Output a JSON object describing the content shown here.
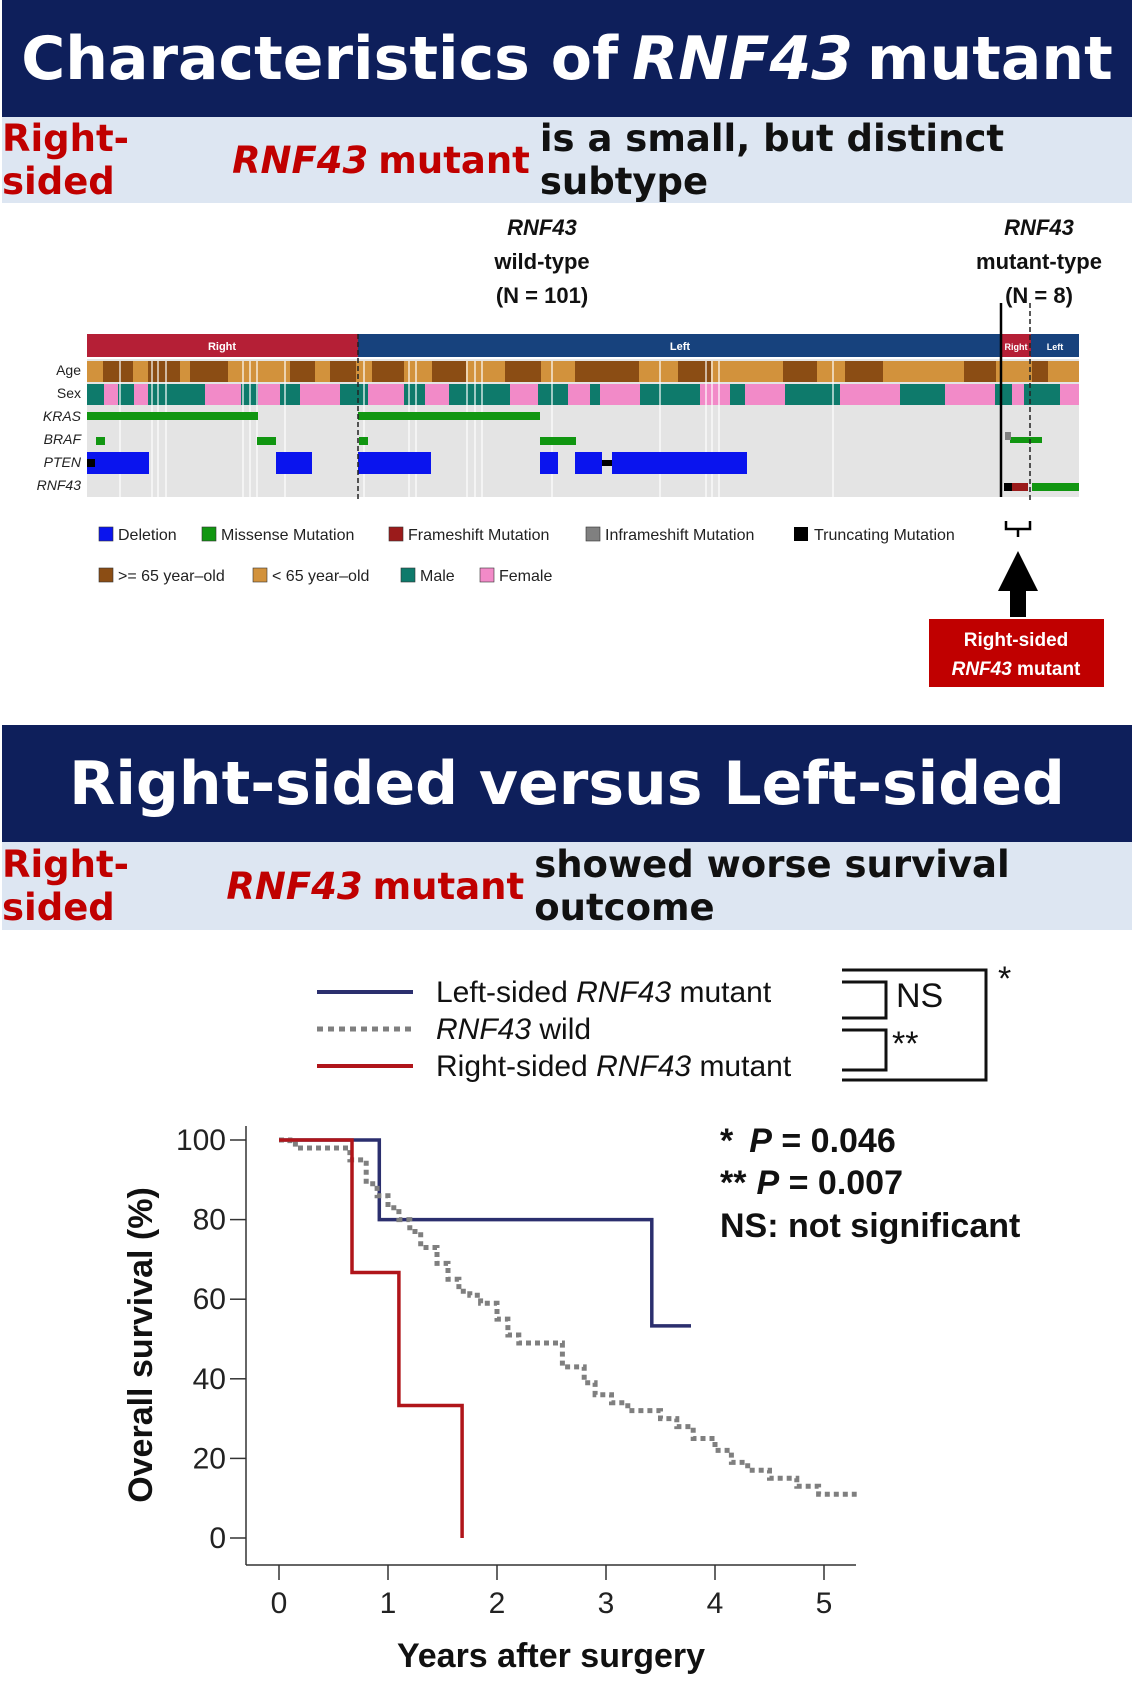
{
  "header1": {
    "title_pre": "Characteristics of ",
    "title_gene": "RNF43",
    "title_post": " mutant"
  },
  "subtitle1": {
    "red_pre": "Right-sided ",
    "red_gene": "RNF43",
    "red_post": " mutant",
    "black": " is a small, but distinct subtype"
  },
  "oncoprint": {
    "wild_gene": "RNF43",
    "wild_label": "wild-type",
    "wild_n": "(N = 101)",
    "mut_gene": "RNF43",
    "mut_label": "mutant-type",
    "mut_n": "(N = 8)",
    "side_right": "Right",
    "side_left": "Left",
    "side_right_small": "Right",
    "side_left_small": "Left",
    "rows": [
      "Age",
      "Sex",
      "KRAS",
      "BRAF",
      "PTEN",
      "RNF43"
    ],
    "legend_row1": [
      "Deletion",
      "Missense Mutation",
      "Frameshift Mutation",
      "Inframeshift Mutation",
      "Truncating Mutation"
    ],
    "legend_row2": [
      ">= 65 year–old",
      "< 65 year–old",
      "Male",
      "Female"
    ],
    "colors": {
      "deletion": "#0a14ee",
      "missense": "#119611",
      "frameshift": "#9b1b1b",
      "inframeshift": "#808080",
      "truncating": "#000000",
      "age_old": "#8b4d14",
      "age_young": "#d2923c",
      "male": "#0e7a6b",
      "female": "#f28ac8",
      "side_right": "#b51f36",
      "side_left": "#17427d",
      "background": "#e4e4e4"
    },
    "callout_line1": "Right-sided",
    "callout_gene": "RNF43",
    "callout_post": " mutant"
  },
  "header2": {
    "title": "Right-sided versus Left-sided"
  },
  "subtitle2": {
    "red_pre": "Right-sided ",
    "red_gene": "RNF43",
    "red_post": " mutant",
    "black": " showed worse survival outcome"
  },
  "chart_data": {
    "type": "line",
    "title": "",
    "xlabel": "Years after surgery",
    "ylabel": "Overall survival (%)",
    "xlim": [
      0,
      5.3
    ],
    "ylim": [
      0,
      100
    ],
    "x_ticks": [
      "0",
      "1",
      "2",
      "3",
      "4",
      "5"
    ],
    "y_ticks": [
      "0",
      "20",
      "40",
      "60",
      "80",
      "100"
    ],
    "series": [
      {
        "name_pre": "Left-sided ",
        "name_gene": "RNF43",
        "name_post": " mutant",
        "color": "#2b2f6e",
        "style": "solid",
        "x": [
          0,
          0.92,
          0.92,
          3.42,
          3.42,
          3.78
        ],
        "y": [
          100,
          100,
          80,
          80,
          53.3,
          53.3
        ]
      },
      {
        "name_pre": "",
        "name_gene": "RNF43",
        "name_post": " wild",
        "color": "#7f7f7f",
        "style": "dotted",
        "x": [
          0,
          0.1,
          0.1,
          0.15,
          0.15,
          0.65,
          0.65,
          0.8,
          0.8,
          0.9,
          0.9,
          1.0,
          1.0,
          1.1,
          1.1,
          1.2,
          1.2,
          1.3,
          1.3,
          1.45,
          1.45,
          1.55,
          1.55,
          1.65,
          1.65,
          1.75,
          1.75,
          1.85,
          1.85,
          2.0,
          2.0,
          2.1,
          2.1,
          2.2,
          2.2,
          2.6,
          2.6,
          2.8,
          2.8,
          2.9,
          2.9,
          3.05,
          3.05,
          3.2,
          3.2,
          3.5,
          3.5,
          3.65,
          3.65,
          3.8,
          3.8,
          4.0,
          4.0,
          4.15,
          4.15,
          4.3,
          4.3,
          4.5,
          4.5,
          4.75,
          4.75,
          4.95,
          4.95,
          5.3
        ],
        "y": [
          100,
          100,
          99,
          99,
          98,
          98,
          95,
          95,
          89,
          89,
          86,
          86,
          83,
          83,
          80,
          80,
          77,
          77,
          73,
          73,
          69,
          69,
          65,
          65,
          62,
          62,
          61,
          61,
          59,
          59,
          55,
          55,
          51,
          51,
          49,
          49,
          43,
          43,
          39,
          39,
          36,
          36,
          34,
          34,
          32,
          32,
          30,
          30,
          28,
          28,
          25,
          25,
          22,
          22,
          19,
          19,
          17,
          17,
          15,
          15,
          13,
          13,
          11,
          11
        ]
      },
      {
        "name_pre": "Right-sided ",
        "name_gene": "RNF43",
        "name_post": " mutant",
        "color": "#b0151a",
        "style": "solid",
        "x": [
          0,
          0.67,
          0.67,
          1.1,
          1.1,
          1.68,
          1.68
        ],
        "y": [
          100,
          100,
          66.7,
          66.7,
          33.3,
          33.3,
          0
        ]
      }
    ],
    "significance": {
      "bracket_ns": "NS",
      "bracket_double": "**",
      "bracket_single": "*",
      "line1_star": "*",
      "line1_p": "P",
      "line1_val": " = 0.046",
      "line2_star": "**",
      "line2_p": "P",
      "line2_val": " = 0.007",
      "line3": "NS: not significant"
    }
  }
}
